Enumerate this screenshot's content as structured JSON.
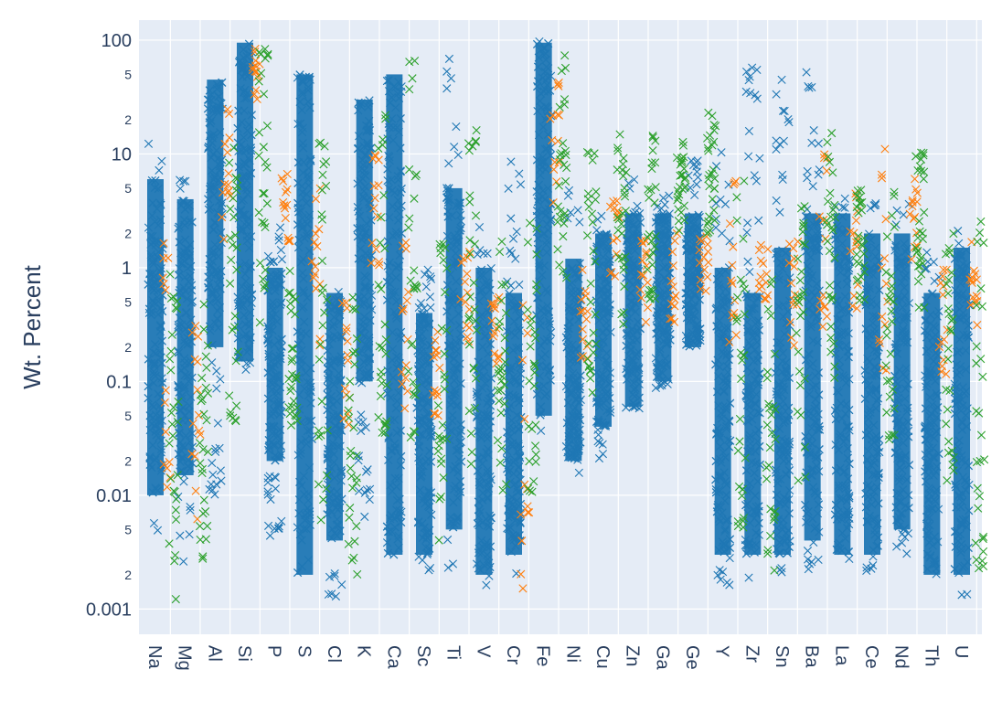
{
  "chart_data": {
    "type": "scatter",
    "ylabel": "Wt. Percent",
    "y_scale": "log",
    "ylim": [
      0.0006,
      150
    ],
    "y_major_ticks": [
      {
        "value": 0.001,
        "label": "0.001"
      },
      {
        "value": 0.01,
        "label": "0.01"
      },
      {
        "value": 0.1,
        "label": "0.1"
      },
      {
        "value": 1,
        "label": "1"
      },
      {
        "value": 10,
        "label": "10"
      },
      {
        "value": 100,
        "label": "100"
      }
    ],
    "y_minor_ticks": [
      {
        "value": 0.002,
        "label": "2"
      },
      {
        "value": 0.005,
        "label": "5"
      },
      {
        "value": 0.02,
        "label": "2"
      },
      {
        "value": 0.05,
        "label": "5"
      },
      {
        "value": 0.2,
        "label": "2"
      },
      {
        "value": 0.5,
        "label": "5"
      },
      {
        "value": 2,
        "label": "2"
      },
      {
        "value": 5,
        "label": "5"
      },
      {
        "value": 20,
        "label": "2"
      },
      {
        "value": 50,
        "label": "5"
      }
    ],
    "grid": true,
    "marker": "x",
    "colors": [
      "#1f77b4",
      "#ff7f0e",
      "#2ca02c"
    ],
    "categories": [
      "Na",
      "Mg",
      "Al",
      "Si",
      "P",
      "S",
      "Cl",
      "K",
      "Ca",
      "Sc",
      "Ti",
      "V",
      "Cr",
      "Fe",
      "Ni",
      "Cu",
      "Zn",
      "Ga",
      "Ge",
      "Y",
      "Zr",
      "Sn",
      "Ba",
      "La",
      "Ce",
      "Nd",
      "Th",
      "U"
    ],
    "series": [
      {
        "color": "#1f77b4",
        "ranges": [
          [
            0.004,
            15
          ],
          [
            0.0025,
            8
          ],
          [
            0.01,
            50
          ],
          [
            0.12,
            100
          ],
          [
            0.004,
            3.5
          ],
          [
            0.0017,
            55
          ],
          [
            0.0012,
            0.7
          ],
          [
            0.004,
            35
          ],
          [
            0.002,
            55
          ],
          [
            0.0018,
            1.1
          ],
          [
            0.002,
            85
          ],
          [
            0.0016,
            2.7
          ],
          [
            0.002,
            12
          ],
          [
            0.03,
            100
          ],
          [
            0.015,
            5
          ],
          [
            0.02,
            3.5
          ],
          [
            0.05,
            7
          ],
          [
            0.08,
            5
          ],
          [
            0.2,
            10
          ],
          [
            0.0015,
            20
          ],
          [
            0.0018,
            70
          ],
          [
            0.002,
            80
          ],
          [
            0.002,
            80
          ],
          [
            0.0022,
            7
          ],
          [
            0.0018,
            4
          ],
          [
            0.003,
            5
          ],
          [
            0.0018,
            1.5
          ],
          [
            0.0013,
            2.5
          ]
        ],
        "dense": [
          [
            0.01,
            6
          ],
          [
            0.015,
            4
          ],
          [
            0.2,
            45
          ],
          [
            0.15,
            95
          ],
          [
            0.02,
            1
          ],
          [
            0.002,
            50
          ],
          [
            0.004,
            0.6
          ],
          [
            0.1,
            30
          ],
          [
            0.003,
            50
          ],
          [
            0.003,
            0.4
          ],
          [
            0.005,
            5
          ],
          [
            0.002,
            1
          ],
          [
            0.003,
            0.6
          ],
          [
            0.05,
            95
          ],
          [
            0.02,
            1.2
          ],
          [
            0.04,
            2
          ],
          [
            0.06,
            3
          ],
          [
            0.1,
            3
          ],
          [
            0.2,
            3
          ],
          [
            0.003,
            1
          ],
          [
            0.003,
            0.6
          ],
          [
            0.003,
            1.5
          ],
          [
            0.004,
            3
          ],
          [
            0.003,
            3
          ],
          [
            0.003,
            2
          ],
          [
            0.005,
            2
          ],
          [
            0.002,
            0.6
          ],
          [
            0.002,
            1.5
          ]
        ]
      },
      {
        "color": "#ff7f0e",
        "ranges": [
          [
            0.005,
            2
          ],
          [
            0.003,
            1
          ],
          [
            1.5,
            28
          ],
          [
            30,
            90
          ],
          [
            1,
            10
          ],
          [
            0.2,
            5
          ],
          [
            0.03,
            0.5
          ],
          [
            1,
            10
          ],
          [
            0.05,
            2
          ],
          [
            0.05,
            0.3
          ],
          [
            0.2,
            2
          ],
          [
            0.1,
            0.8
          ],
          [
            0.0015,
            0.5
          ],
          [
            3,
            60
          ],
          [
            0.1,
            1
          ],
          [
            0.5,
            4
          ],
          [
            0.3,
            2
          ],
          [
            0.3,
            2
          ],
          [
            0.6,
            2
          ],
          [
            0.2,
            6
          ],
          [
            0.5,
            2
          ],
          [
            0.2,
            2
          ],
          [
            0.3,
            10
          ],
          [
            0.4,
            10
          ],
          [
            0.1,
            22
          ],
          [
            1,
            8
          ],
          [
            0.1,
            1
          ],
          [
            0.3,
            2
          ]
        ]
      },
      {
        "color": "#2ca02c",
        "ranges": [
          [
            0.0012,
            1
          ],
          [
            0.002,
            0.5
          ],
          [
            0.04,
            12
          ],
          [
            0.3,
            85
          ],
          [
            0.04,
            1
          ],
          [
            0.005,
            15
          ],
          [
            0.002,
            0.6
          ],
          [
            0.03,
            45
          ],
          [
            0.03,
            70
          ],
          [
            0.004,
            1.7
          ],
          [
            0.01,
            30
          ],
          [
            0.01,
            2
          ],
          [
            0.01,
            3
          ],
          [
            0.8,
            85
          ],
          [
            0.05,
            12
          ],
          [
            0.3,
            15
          ],
          [
            0.5,
            15
          ],
          [
            2,
            14
          ],
          [
            2,
            25
          ],
          [
            0.005,
            6
          ],
          [
            0.002,
            0.9
          ],
          [
            0.01,
            6
          ],
          [
            0.1,
            18
          ],
          [
            0.5,
            5
          ],
          [
            0.03,
            5
          ],
          [
            0.4,
            11
          ],
          [
            0.01,
            2
          ],
          [
            0.002,
            3
          ]
        ]
      }
    ]
  }
}
